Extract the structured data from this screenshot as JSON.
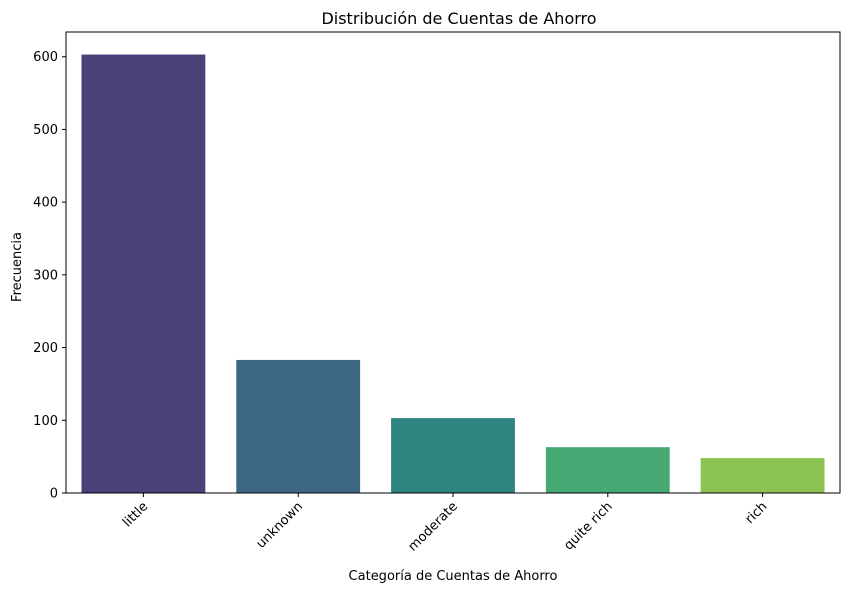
{
  "chart_data": {
    "type": "bar",
    "title": "Distribución de Cuentas de Ahorro",
    "xlabel": "Categoría de Cuentas de Ahorro",
    "ylabel": "Frecuencia",
    "categories": [
      "little",
      "unknown",
      "moderate",
      "quite rich",
      "rich"
    ],
    "values": [
      603,
      183,
      103,
      63,
      48
    ],
    "colors": [
      "#4a417a",
      "#3d6783",
      "#2e8580",
      "#46a873",
      "#8bc452"
    ],
    "ylim": [
      0,
      634
    ],
    "yticks": [
      0,
      100,
      200,
      300,
      400,
      500,
      600
    ],
    "grid": false,
    "legend": "none"
  }
}
